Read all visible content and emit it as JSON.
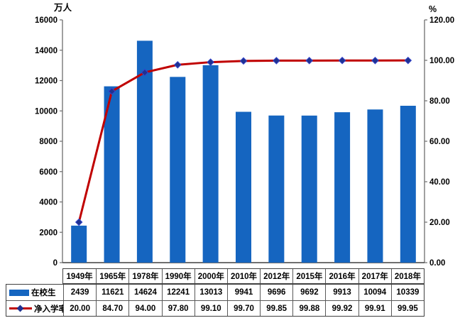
{
  "chart_data": {
    "type": "bar+line combo",
    "title": "",
    "categories": [
      "1949年",
      "1965年",
      "1978年",
      "1990年",
      "2000年",
      "2010年",
      "2012年",
      "2015年",
      "2016年",
      "2017年",
      "2018年"
    ],
    "series": [
      {
        "name": "在校生",
        "type": "bar",
        "axis": "left",
        "color": "#1565C0",
        "values": [
          2439,
          11621,
          14624,
          12241,
          13013,
          9941,
          9696,
          9692,
          9913,
          10094,
          10339
        ]
      },
      {
        "name": "净入学率",
        "type": "line",
        "axis": "right",
        "color": "#C00000",
        "marker": "diamond",
        "marker_fill": "#1F3291",
        "marker_stroke": "#3344CC",
        "values": [
          20.0,
          84.7,
          94.0,
          97.8,
          99.1,
          99.7,
          99.85,
          99.88,
          99.92,
          99.91,
          99.95
        ]
      }
    ],
    "left_axis": {
      "label": "万人",
      "min": 0,
      "max": 16000,
      "step": 2000,
      "decimals": 0
    },
    "right_axis": {
      "label": "%",
      "min": 0,
      "max": 120,
      "step": 20,
      "decimals": 2
    },
    "grid": false,
    "legend_position": "data-table-left",
    "axis_color": "#6e6e6e",
    "baseline_color": "#404040",
    "plot_background": "#ffffff"
  }
}
